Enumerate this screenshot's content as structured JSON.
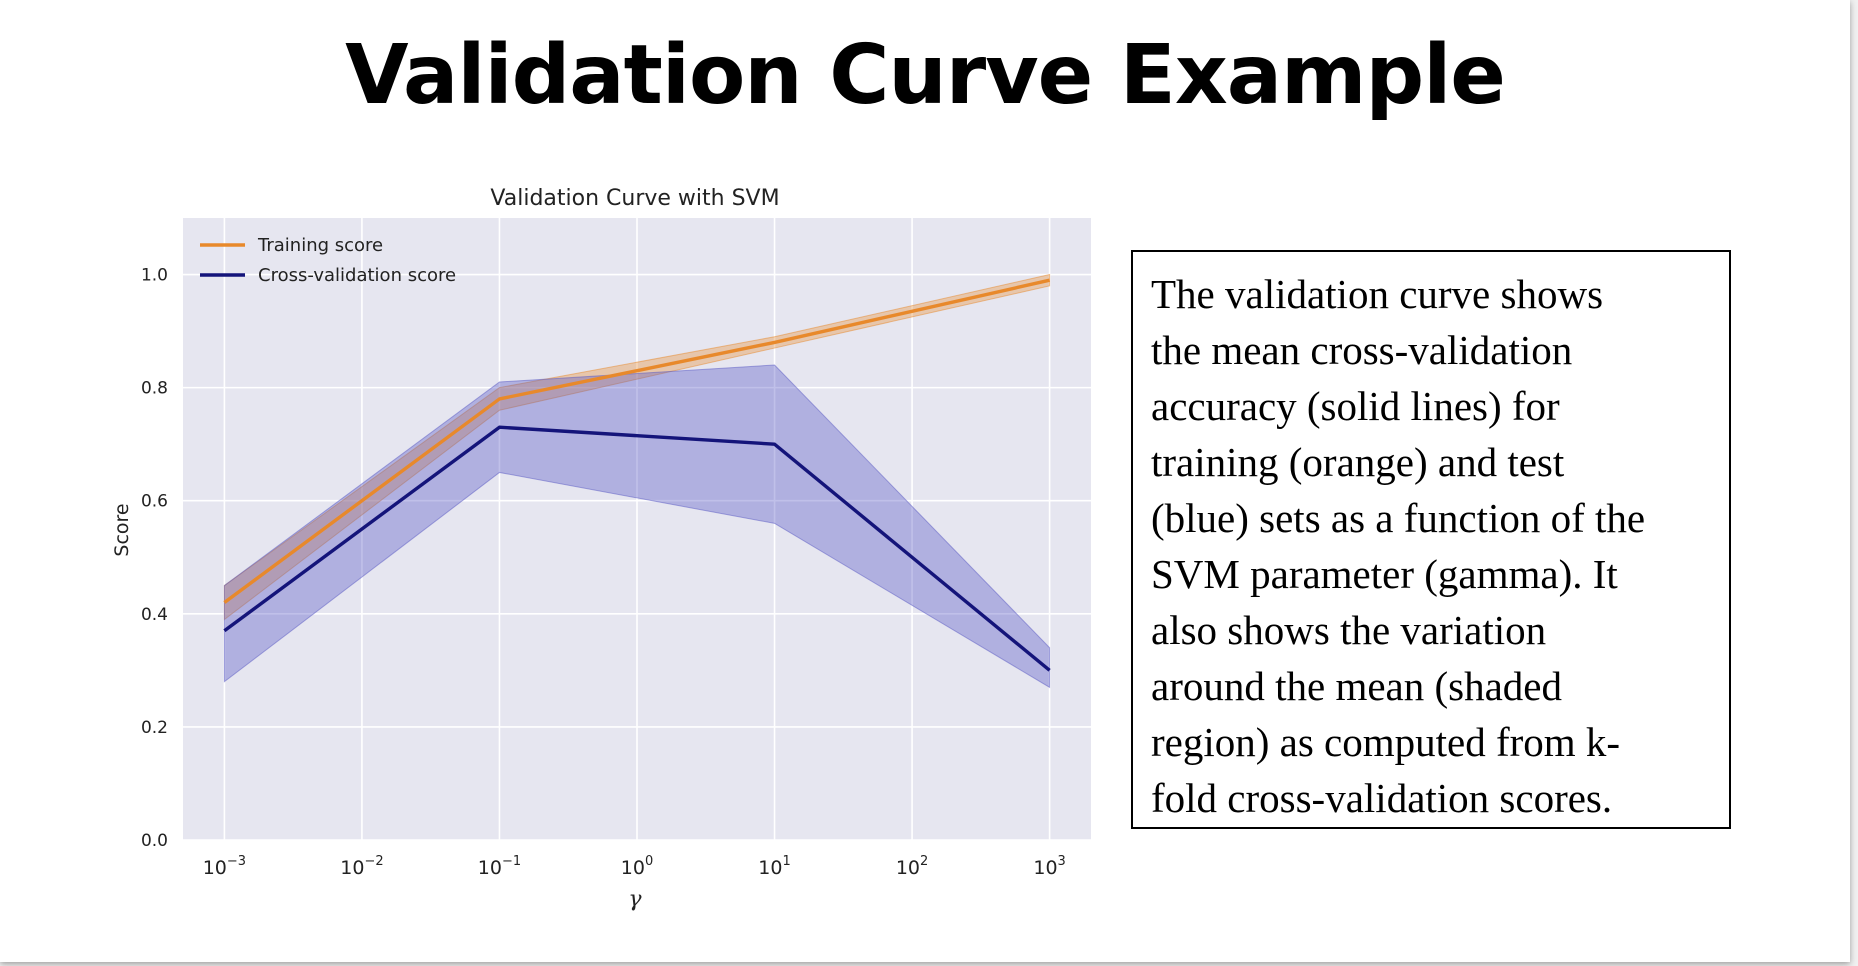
{
  "slide": {
    "title": "Validation Curve Example",
    "description": "The validation curve shows\nthe mean cross-validation\naccuracy (solid lines) for\ntraining (orange) and test\n(blue) sets as a function of the\nSVM parameter (gamma).  It\nalso shows the variation\naround the mean (shaded\nregion) as computed from k-\nfold cross-validation scores."
  },
  "chart_data": {
    "type": "line",
    "title": "Validation Curve with SVM",
    "xlabel": "γ",
    "ylabel": "Score",
    "xscale": "log",
    "x": [
      0.001,
      0.1,
      10,
      1000
    ],
    "xticks": [
      {
        "value": 0.001,
        "base": "10",
        "exp": "−3"
      },
      {
        "value": 0.01,
        "base": "10",
        "exp": "−2"
      },
      {
        "value": 0.1,
        "base": "10",
        "exp": "−1"
      },
      {
        "value": 1,
        "base": "10",
        "exp": "0"
      },
      {
        "value": 10,
        "base": "10",
        "exp": "1"
      },
      {
        "value": 100,
        "base": "10",
        "exp": "2"
      },
      {
        "value": 1000,
        "base": "10",
        "exp": "3"
      }
    ],
    "yticks": [
      {
        "value": 0.0,
        "label": "0.0"
      },
      {
        "value": 0.2,
        "label": "0.2"
      },
      {
        "value": 0.4,
        "label": "0.4"
      },
      {
        "value": 0.6,
        "label": "0.6"
      },
      {
        "value": 0.8,
        "label": "0.8"
      },
      {
        "value": 1.0,
        "label": "1.0"
      }
    ],
    "xlim": [
      0.0005,
      2000
    ],
    "ylim": [
      0,
      1.1
    ],
    "grid": true,
    "legend_position": "top-left",
    "series": [
      {
        "name": "Training score",
        "color": "#e8892b",
        "values": [
          0.42,
          0.78,
          0.88,
          0.99
        ],
        "lower": [
          0.39,
          0.76,
          0.87,
          0.98
        ],
        "upper": [
          0.45,
          0.8,
          0.89,
          1.0
        ]
      },
      {
        "name": "Cross-validation score",
        "color": "#14147a",
        "values": [
          0.37,
          0.73,
          0.7,
          0.3
        ],
        "lower": [
          0.28,
          0.65,
          0.56,
          0.27
        ],
        "upper": [
          0.45,
          0.81,
          0.84,
          0.34
        ]
      }
    ],
    "colors": {
      "plot_background": "#e6e6f0",
      "grid": "#ffffff",
      "training_band": "#e8892b",
      "cv_band": "#5a5ac4"
    }
  }
}
